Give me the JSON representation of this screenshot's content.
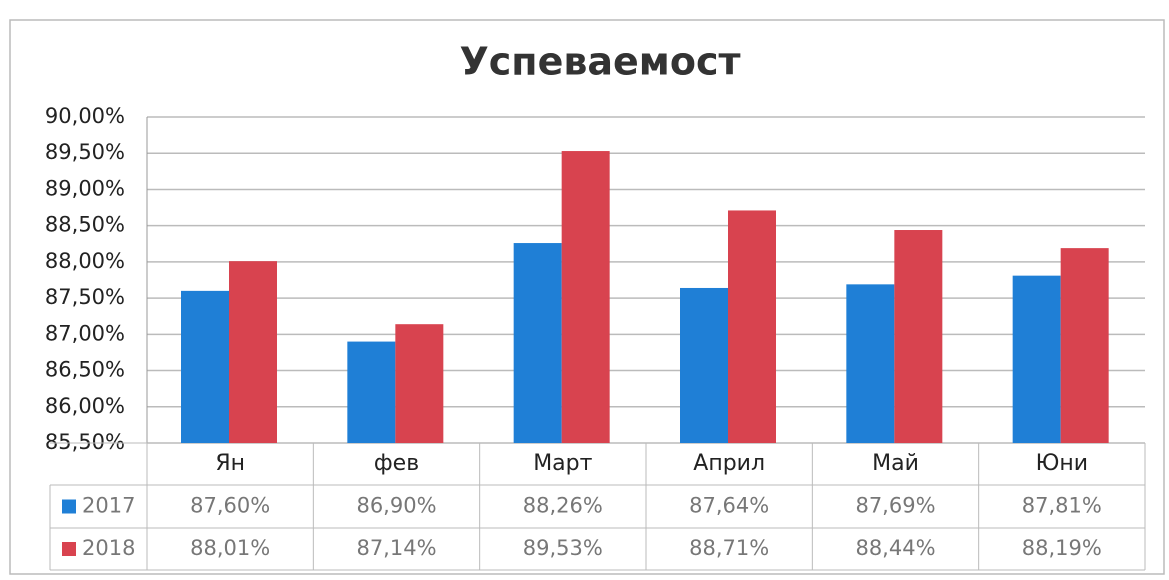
{
  "chart_data": {
    "type": "bar",
    "title": "Успеваемост",
    "categories": [
      "Ян",
      "фев",
      "Март",
      "Април",
      "Май",
      "Юни"
    ],
    "series": [
      {
        "name": "2017",
        "color": "#1f7fd6",
        "values": [
          87.6,
          86.9,
          88.26,
          87.64,
          87.69,
          87.81
        ],
        "value_labels": [
          "87,60%",
          "86,90%",
          "88,26%",
          "87,64%",
          "87,69%",
          "87,81%"
        ]
      },
      {
        "name": "2018",
        "color": "#d8434f",
        "values": [
          88.01,
          87.14,
          89.53,
          88.71,
          88.44,
          88.19
        ],
        "value_labels": [
          "88,01%",
          "87,14%",
          "89,53%",
          "88,71%",
          "88,44%",
          "88,19%"
        ]
      }
    ],
    "ylim": [
      85.5,
      90
    ],
    "yticks": [
      {
        "value": 85.5,
        "label": "85,50%"
      },
      {
        "value": 86,
        "label": "86,00%"
      },
      {
        "value": 86.5,
        "label": "86,50%"
      },
      {
        "value": 87,
        "label": "87,00%"
      },
      {
        "value": 87.5,
        "label": "87,50%"
      },
      {
        "value": 88,
        "label": "88,00%"
      },
      {
        "value": 88.5,
        "label": "88,50%"
      },
      {
        "value": 89,
        "label": "89,00%"
      },
      {
        "value": 89.5,
        "label": "89,50%"
      },
      {
        "value": 90,
        "label": "90,00%"
      }
    ],
    "grid": true
  }
}
